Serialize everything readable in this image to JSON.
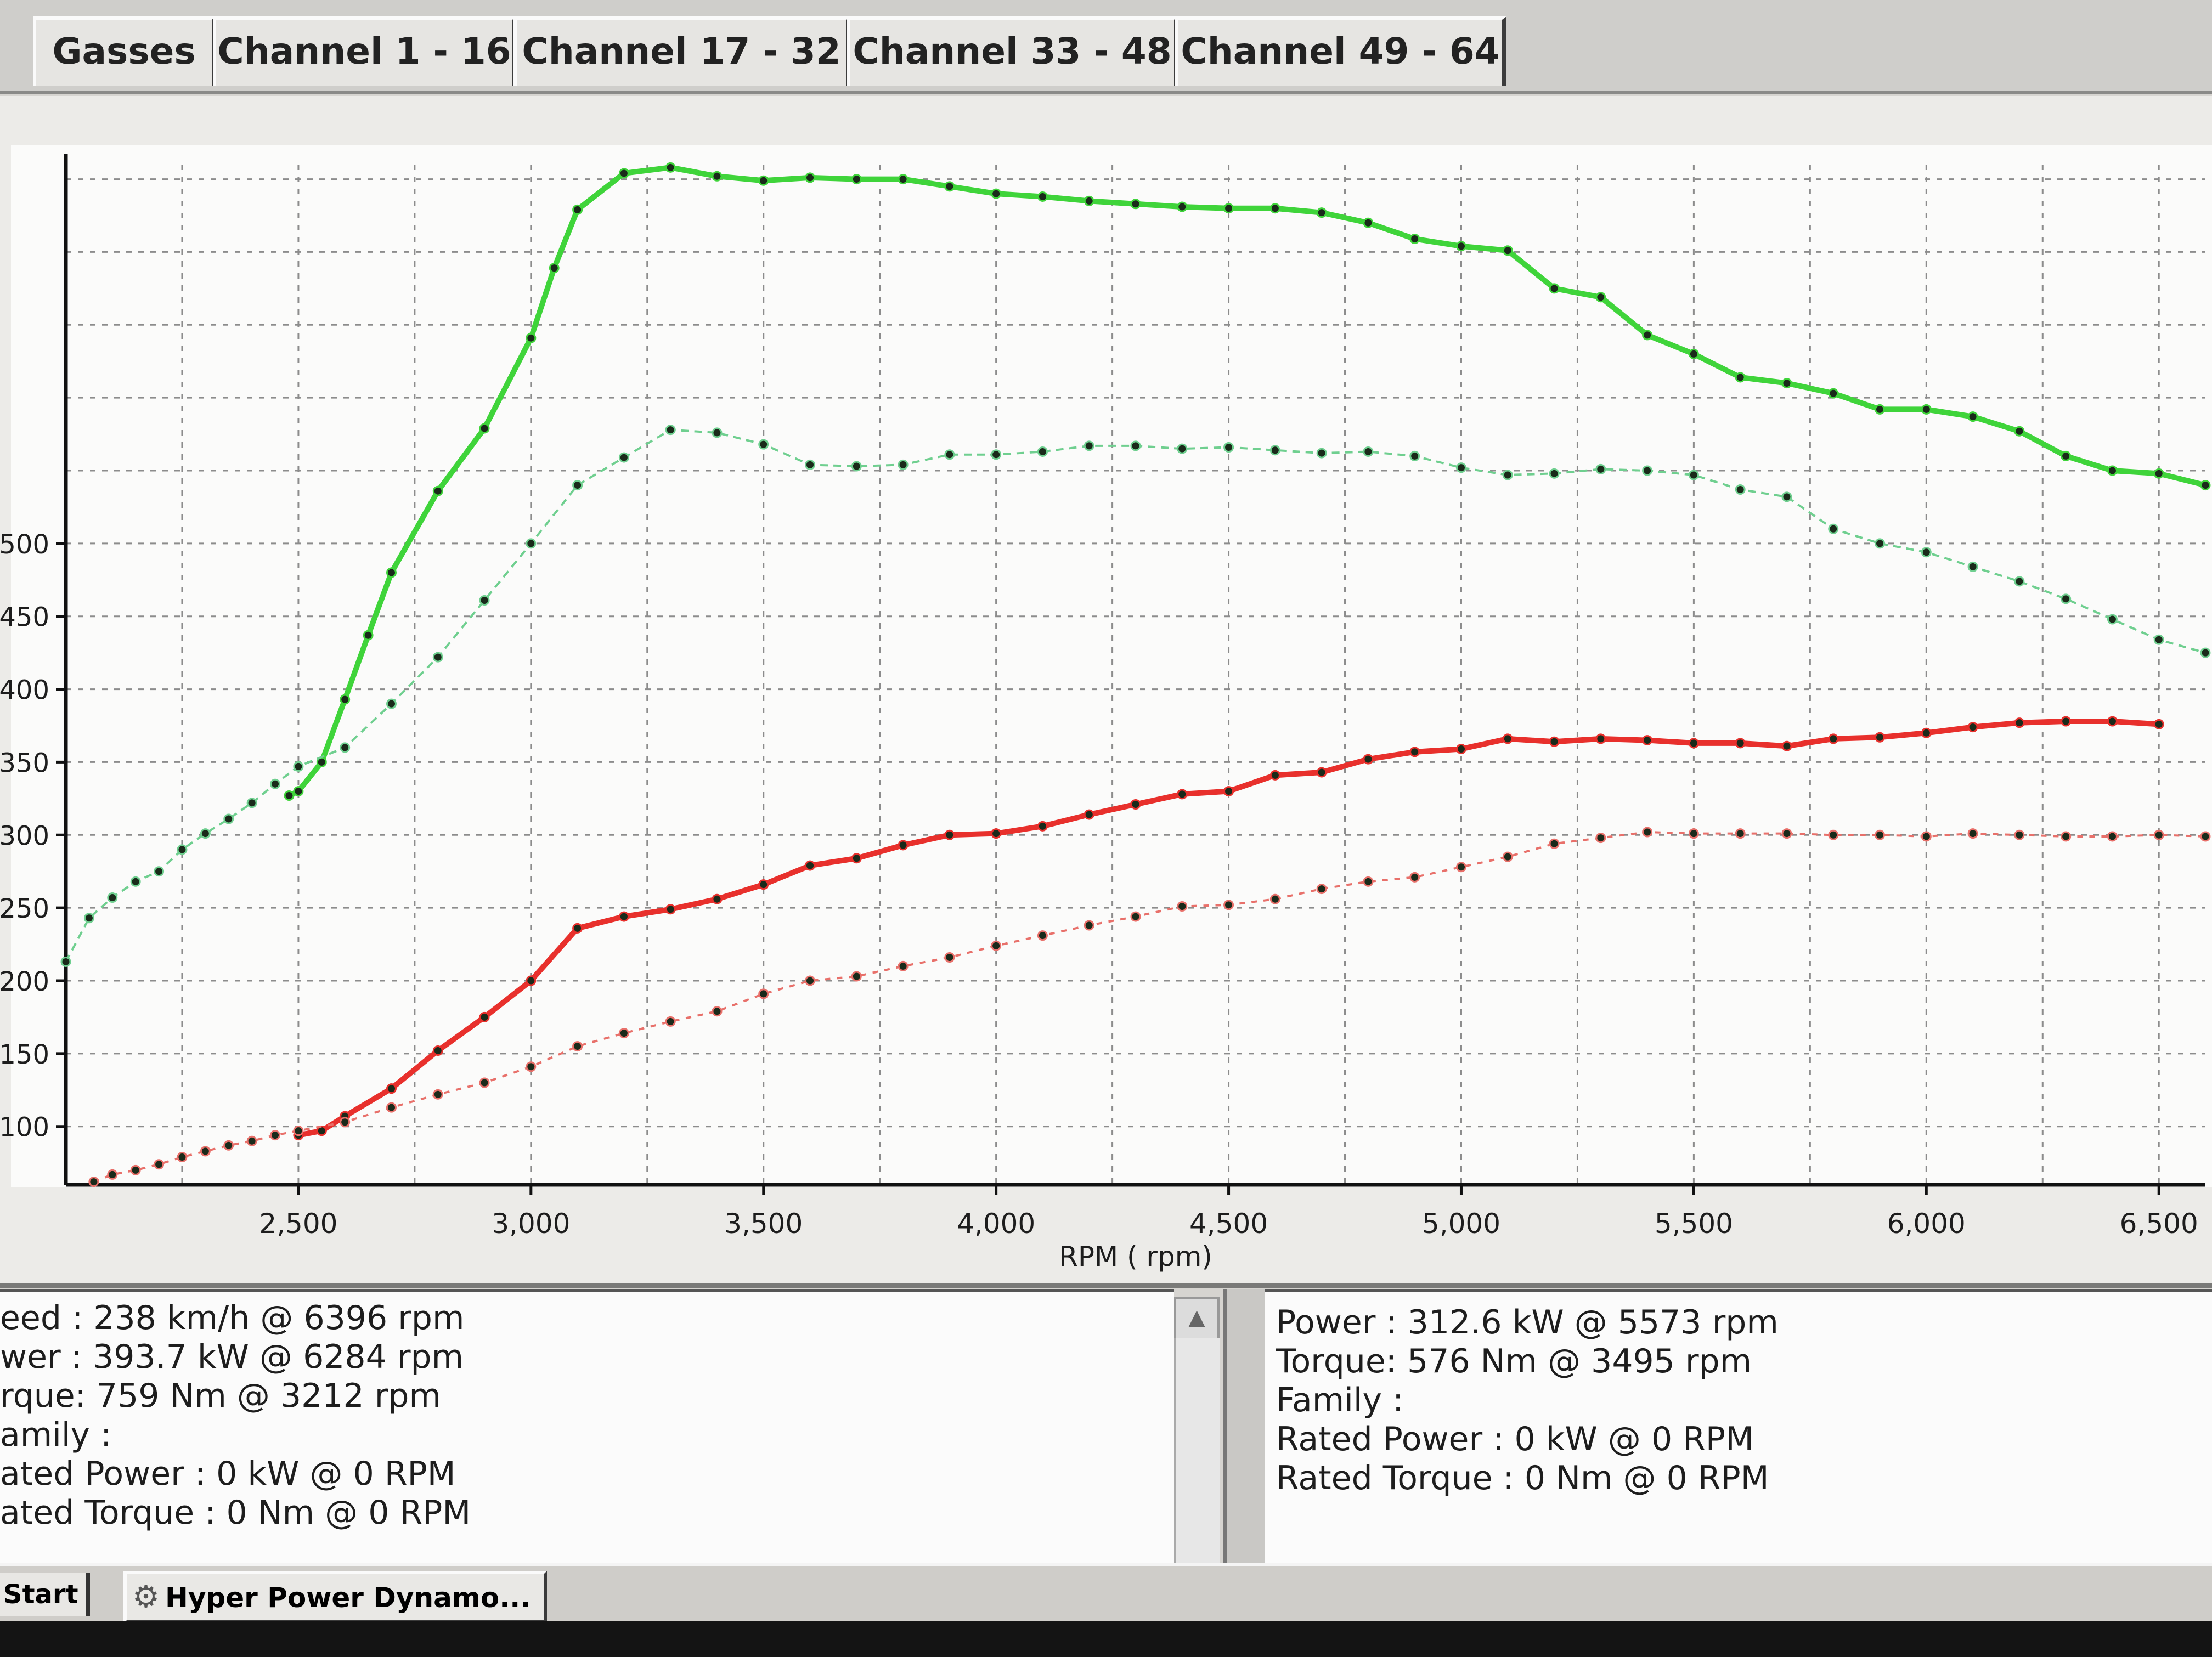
{
  "tabs": [
    "Gasses",
    "Channel 1 - 16",
    "Channel 17 - 32",
    "Channel 33 - 48",
    "Channel 49 - 64"
  ],
  "chart_data": {
    "type": "line",
    "xlabel": "RPM ( rpm)",
    "x_ticks": [
      "2,500",
      "3,000",
      "3,500",
      "4,000",
      "4,500",
      "5,000",
      "5,500",
      "6,000",
      "6,500"
    ],
    "y_ticks": [
      "100",
      "150",
      "200",
      "250",
      "300",
      "350",
      "400",
      "450",
      "500"
    ],
    "xlim": [
      2000,
      6600
    ],
    "ylim": [
      60,
      760
    ],
    "grid": true,
    "series": [
      {
        "color": "#3fd43a",
        "style": "solid",
        "x": [
          2480,
          2500,
          2550,
          2600,
          2650,
          2700,
          2800,
          2900,
          3000,
          3050,
          3100,
          3200,
          3300,
          3400,
          3500,
          3600,
          3700,
          3800,
          3900,
          4000,
          4100,
          4200,
          4300,
          4400,
          4500,
          4600,
          4700,
          4800,
          4900,
          5000,
          5100,
          5200,
          5300,
          5400,
          5500,
          5600,
          5700,
          5800,
          5900,
          6000,
          6100,
          6200,
          6300,
          6400,
          6500,
          6600
        ],
        "y": [
          327,
          330,
          350,
          393,
          437,
          480,
          536,
          579,
          641,
          689,
          729,
          754,
          758,
          752,
          749,
          751,
          750,
          750,
          745,
          740,
          738,
          735,
          733,
          731,
          730,
          730,
          727,
          720,
          709,
          704,
          701,
          675,
          669,
          643,
          630,
          614,
          610,
          603,
          592,
          592,
          587,
          577,
          560,
          550,
          548,
          540
        ]
      },
      {
        "color": "#6fcf8f",
        "style": "dashed",
        "x": [
          2000,
          2050,
          2100,
          2150,
          2200,
          2250,
          2300,
          2350,
          2400,
          2450,
          2500,
          2600,
          2700,
          2800,
          2900,
          3000,
          3100,
          3200,
          3300,
          3400,
          3500,
          3600,
          3700,
          3800,
          3900,
          4000,
          4100,
          4200,
          4300,
          4400,
          4500,
          4600,
          4700,
          4800,
          4900,
          5000,
          5100,
          5200,
          5300,
          5400,
          5500,
          5600,
          5700,
          5800,
          5900,
          6000,
          6100,
          6200,
          6300,
          6400,
          6500,
          6600
        ],
        "y": [
          213,
          243,
          257,
          268,
          275,
          290,
          301,
          311,
          322,
          335,
          347,
          360,
          390,
          422,
          461,
          500,
          540,
          559,
          578,
          576,
          568,
          554,
          553,
          554,
          561,
          561,
          563,
          567,
          567,
          565,
          566,
          564,
          562,
          563,
          560,
          552,
          547,
          548,
          551,
          550,
          547,
          537,
          532,
          510,
          500,
          494,
          484,
          474,
          462,
          448,
          434,
          425
        ]
      },
      {
        "color": "#e8302c",
        "style": "solid",
        "x": [
          2500,
          2550,
          2600,
          2700,
          2800,
          2900,
          3000,
          3100,
          3200,
          3300,
          3400,
          3500,
          3600,
          3700,
          3800,
          3900,
          4000,
          4100,
          4200,
          4300,
          4400,
          4500,
          4600,
          4700,
          4800,
          4900,
          5000,
          5100,
          5200,
          5300,
          5400,
          5500,
          5600,
          5700,
          5800,
          5900,
          6000,
          6100,
          6200,
          6300,
          6400,
          6500
        ],
        "y": [
          94,
          97,
          107,
          126,
          152,
          175,
          200,
          236,
          244,
          249,
          256,
          266,
          279,
          284,
          293,
          300,
          301,
          306,
          314,
          321,
          328,
          330,
          341,
          343,
          352,
          357,
          359,
          366,
          364,
          366,
          365,
          363,
          363,
          361,
          366,
          367,
          370,
          374,
          377,
          378,
          378,
          376
        ]
      },
      {
        "color": "#e8706a",
        "style": "dotted",
        "x": [
          2060,
          2100,
          2150,
          2200,
          2250,
          2300,
          2350,
          2400,
          2450,
          2500,
          2600,
          2700,
          2800,
          2900,
          3000,
          3100,
          3200,
          3300,
          3400,
          3500,
          3600,
          3700,
          3800,
          3900,
          4000,
          4100,
          4200,
          4300,
          4400,
          4500,
          4600,
          4700,
          4800,
          4900,
          5000,
          5100,
          5200,
          5300,
          5400,
          5500,
          5600,
          5700,
          5800,
          5900,
          6000,
          6100,
          6200,
          6300,
          6400,
          6500,
          6600
        ],
        "y": [
          62,
          67,
          70,
          74,
          79,
          83,
          87,
          90,
          94,
          97,
          103,
          113,
          122,
          130,
          141,
          155,
          164,
          172,
          179,
          191,
          200,
          203,
          210,
          216,
          224,
          231,
          238,
          244,
          251,
          252,
          256,
          263,
          268,
          271,
          278,
          285,
          294,
          298,
          302,
          301,
          301,
          301,
          300,
          300,
          299,
          301,
          300,
          299,
          299,
          300,
          299
        ]
      }
    ]
  },
  "info_left": [
    "eed : 238 km/h @ 6396 rpm",
    "wer : 393.7 kW @ 6284 rpm",
    "rque: 759 Nm @ 3212 rpm",
    "amily :",
    "ated Power : 0 kW @ 0 RPM",
    "ated Torque : 0 Nm @ 0 RPM"
  ],
  "info_right": [
    "Power : 312.6 kW @ 5573 rpm",
    "Torque: 576 Nm @ 3495 rpm",
    "Family :",
    "Rated Power : 0 kW @ 0 RPM",
    "Rated Torque : 0 Nm @ 0 RPM"
  ],
  "taskbar": {
    "start_label": "Start",
    "task_label": "Hyper Power Dynamo...",
    "task_icon": "gear-icon"
  }
}
